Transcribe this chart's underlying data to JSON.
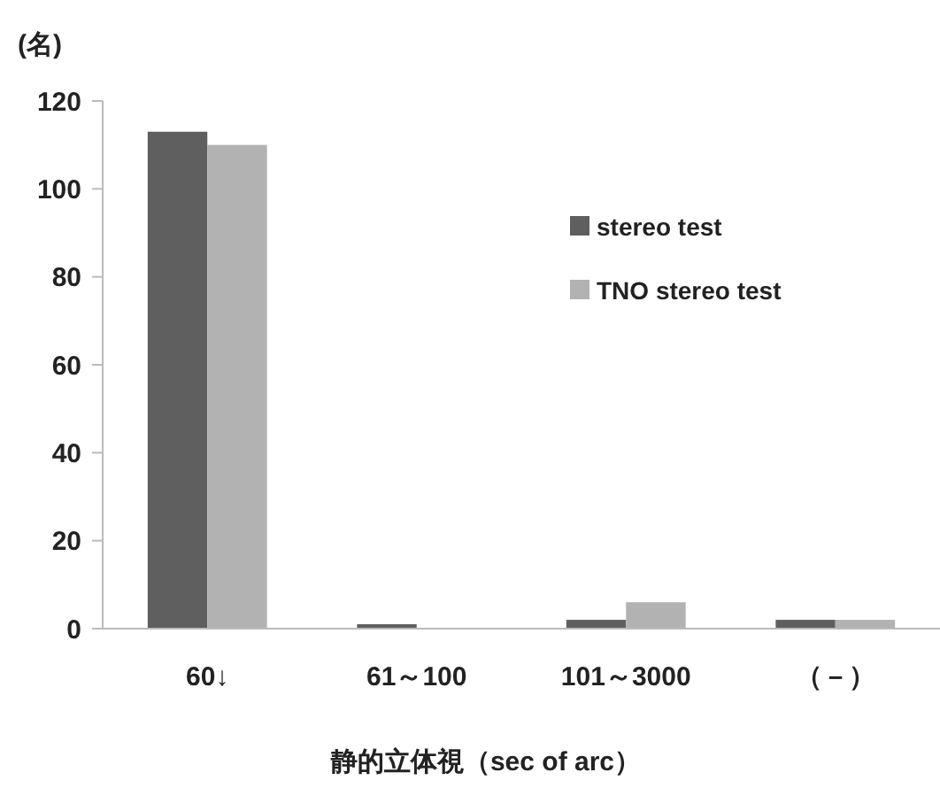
{
  "chart_data": {
    "type": "bar",
    "ylabel": "(名)",
    "xlabel": "静的立体視（sec of arc）",
    "categories": [
      "60↓",
      "61～100",
      "101～3000",
      "（－）"
    ],
    "series": [
      {
        "name": "stereo test",
        "color": "#5f5f5f",
        "values": [
          113,
          1,
          2,
          2
        ]
      },
      {
        "name": "TNO stereo test",
        "color": "#b2b2b2",
        "values": [
          110,
          0,
          6,
          2
        ]
      }
    ],
    "ylim": [
      0,
      120
    ],
    "yticks": [
      0,
      20,
      40,
      60,
      80,
      100,
      120
    ],
    "grid": false,
    "legend": "right"
  }
}
